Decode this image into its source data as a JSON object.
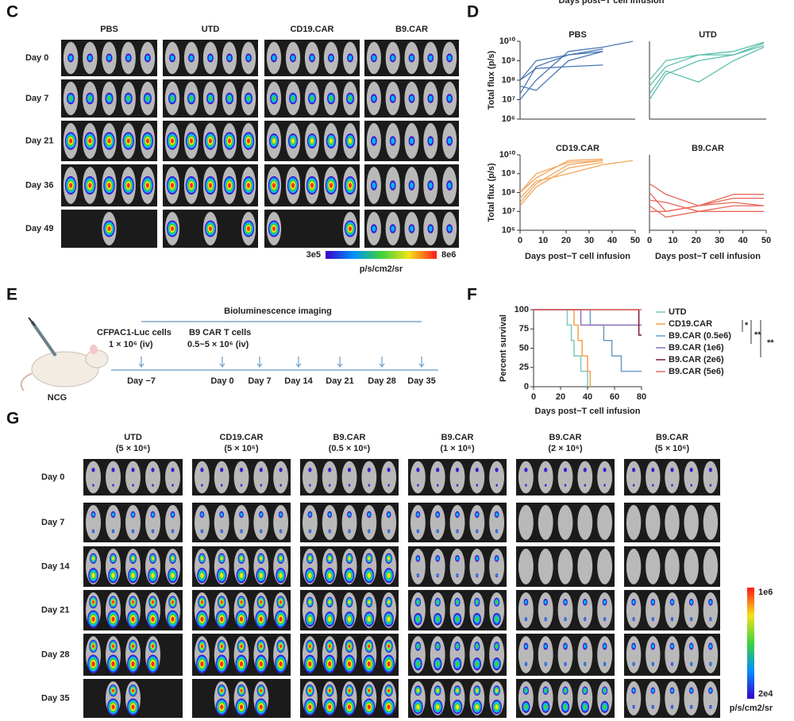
{
  "panel_c": {
    "label": "C",
    "columns": [
      "PBS",
      "UTD",
      "CD19.CAR",
      "B9.CAR"
    ],
    "rows": [
      "Day 0",
      "Day 7",
      "Day 21",
      "Day 36",
      "Day 49"
    ],
    "colorbar": {
      "min_label": "3e5",
      "max_label": "8e6",
      "unit": "p/s/cm2/sr"
    }
  },
  "panel_d": {
    "label": "D",
    "top_caption": "Days post−T cell infusion"
  },
  "panel_e": {
    "label": "E",
    "imaging": "Bioluminescence imaging",
    "cells": "CFPAC1-Luc cells",
    "cells_dose": "1 × 10⁶ (iv)",
    "car": "B9 CAR T cells",
    "car_dose": "0.5~5 × 10⁶ (iv)",
    "mouse": "NCG",
    "timepoints": [
      "Day −7",
      "Day 0",
      "Day 7",
      "Day 14",
      "Day 21",
      "Day 28",
      "Day 35"
    ]
  },
  "panel_f": {
    "label": "F"
  },
  "panel_g": {
    "label": "G",
    "columns": [
      {
        "name": "UTD",
        "dose": "(5 × 10⁶)"
      },
      {
        "name": "CD19.CAR",
        "dose": "(5 × 10⁶)"
      },
      {
        "name": "B9.CAR",
        "dose": "(0.5 × 10⁶)"
      },
      {
        "name": "B9.CAR",
        "dose": "(1 × 10⁶)"
      },
      {
        "name": "B9.CAR",
        "dose": "(2 × 10⁶)"
      },
      {
        "name": "B9.CAR",
        "dose": "(5 × 10⁶)"
      }
    ],
    "rows": [
      "Day 0",
      "Day 7",
      "Day 14",
      "Day 21",
      "Day 28",
      "Day 35"
    ],
    "colorbar": {
      "max_label": "1e6",
      "min_label": "2e4",
      "unit": "p/s/cm2/sr"
    }
  },
  "chart_data": [
    {
      "type": "line",
      "title": "PBS",
      "ylabel": "Total flux (p/s)",
      "log_y": true,
      "x": [
        0,
        7,
        21,
        36,
        49
      ],
      "xlim": [
        0,
        50
      ],
      "ylim": [
        1000000,
        10000000000
      ],
      "yticks": [
        {
          "value": 1000000,
          "label": "10⁶"
        },
        {
          "value": 10000000,
          "label": "10⁷"
        },
        {
          "value": 100000000,
          "label": "10⁸"
        },
        {
          "value": 1000000000,
          "label": "10⁹"
        },
        {
          "value": 10000000000,
          "label": "10¹⁰"
        }
      ],
      "series": [
        {
          "color": "#4a78b5",
          "values": [
            20000000,
            500000000,
            2000000000,
            3000000000,
            null
          ]
        },
        {
          "color": "#4a78b5",
          "values": [
            10000000,
            100000000,
            3000000000,
            5000000000,
            10000000000
          ]
        },
        {
          "color": "#4a78b5",
          "values": [
            100000000,
            400000000,
            500000000,
            600000000,
            null
          ]
        },
        {
          "color": "#4a78b5",
          "values": [
            100000000,
            1000000000,
            2000000000,
            4000000000,
            null
          ]
        },
        {
          "color": "#4a78b5",
          "values": [
            50000000,
            30000000,
            1000000000,
            3000000000,
            null
          ]
        }
      ]
    },
    {
      "type": "line",
      "title": "UTD",
      "log_y": true,
      "x": [
        0,
        7,
        21,
        36,
        49
      ],
      "xlim": [
        0,
        50
      ],
      "ylim": [
        1000000,
        10000000000
      ],
      "series": [
        {
          "color": "#5fbfae",
          "values": [
            10000000,
            200000000,
            1000000000,
            2000000000,
            8000000000
          ]
        },
        {
          "color": "#5fbfae",
          "values": [
            50000000,
            500000000,
            2000000000,
            2000000000,
            6000000000
          ]
        },
        {
          "color": "#5fbfae",
          "values": [
            100000000,
            1000000000,
            2000000000,
            3000000000,
            9000000000
          ]
        },
        {
          "color": "#5fbfae",
          "values": [
            20000000,
            300000000,
            80000000,
            1000000000,
            5000000000
          ]
        }
      ]
    },
    {
      "type": "line",
      "title": "CD19.CAR",
      "ylabel": "Total flux (p/s)",
      "xlabel": "Days post−T cell infusion",
      "log_y": true,
      "x": [
        0,
        7,
        21,
        36,
        49
      ],
      "xlim": [
        0,
        50
      ],
      "xticks": [
        0,
        10,
        20,
        30,
        40,
        50
      ],
      "ylim": [
        1000000,
        10000000000
      ],
      "yticks": [
        {
          "value": 1000000,
          "label": "10⁶"
        },
        {
          "value": 10000000,
          "label": "10⁷"
        },
        {
          "value": 100000000,
          "label": "10⁸"
        },
        {
          "value": 1000000000,
          "label": "10⁹"
        },
        {
          "value": 10000000000,
          "label": "10¹⁰"
        }
      ],
      "series": [
        {
          "color": "#f2a65a",
          "values": [
            100000000,
            600000000,
            5000000000,
            6000000000,
            null
          ]
        },
        {
          "color": "#f2a65a",
          "values": [
            20000000,
            200000000,
            2000000000,
            4000000000,
            null
          ]
        },
        {
          "color": "#f2a65a",
          "values": [
            50000000,
            400000000,
            1000000000,
            3000000000,
            5000000000
          ]
        },
        {
          "color": "#f2a65a",
          "values": [
            30000000,
            300000000,
            3000000000,
            5000000000,
            null
          ]
        },
        {
          "color": "#f2a65a",
          "values": [
            100000000,
            1000000000,
            4000000000,
            5000000000,
            null
          ]
        }
      ]
    },
    {
      "type": "line",
      "title": "B9.CAR",
      "xlabel": "Days post−T cell infusion",
      "log_y": true,
      "x": [
        0,
        7,
        21,
        36,
        49
      ],
      "xlim": [
        0,
        50
      ],
      "xticks": [
        0,
        10,
        20,
        30,
        40,
        50
      ],
      "ylim": [
        1000000,
        10000000000
      ],
      "series": [
        {
          "color": "#e8675a",
          "values": [
            300000000,
            80000000,
            20000000,
            80000000,
            80000000
          ]
        },
        {
          "color": "#e8675a",
          "values": [
            100000000,
            10000000,
            20000000,
            50000000,
            50000000
          ]
        },
        {
          "color": "#e8675a",
          "values": [
            40000000,
            30000000,
            10000000,
            20000000,
            20000000
          ]
        },
        {
          "color": "#e8675a",
          "values": [
            20000000,
            5000000,
            10000000,
            10000000,
            10000000
          ]
        },
        {
          "color": "#e8675a",
          "values": [
            10000000,
            10000000,
            20000000,
            30000000,
            20000000
          ]
        }
      ]
    },
    {
      "type": "step",
      "ylabel": "Percent survival",
      "xlabel": "Days post−T cell infusion",
      "xlim": [
        0,
        80
      ],
      "xticks": [
        0,
        20,
        40,
        60,
        80
      ],
      "ylim": [
        0,
        100
      ],
      "yticks": [
        0,
        25,
        50,
        75,
        100
      ],
      "annotations": [
        "*",
        "**",
        "**"
      ],
      "series": [
        {
          "name": "UTD",
          "color": "#7cc9c0",
          "x": [
            0,
            25,
            28,
            30,
            35,
            40
          ],
          "values": [
            100,
            80,
            60,
            40,
            20,
            0
          ]
        },
        {
          "name": "CD19.CAR",
          "color": "#f5a04a",
          "x": [
            0,
            30,
            33,
            36,
            40,
            42
          ],
          "values": [
            100,
            80,
            60,
            40,
            20,
            0
          ]
        },
        {
          "name": "B9.CAR (0.5e6)",
          "color": "#6c9cc8",
          "x": [
            0,
            42,
            52,
            58,
            65,
            80
          ],
          "values": [
            100,
            80,
            60,
            40,
            20,
            20
          ]
        },
        {
          "name": "B9.CAR (1e6)",
          "color": "#8f6fc0",
          "x": [
            0,
            35,
            80
          ],
          "values": [
            100,
            80,
            80
          ]
        },
        {
          "name": "B9.CAR (2e6)",
          "color": "#7a1b2e",
          "x": [
            0,
            78,
            80
          ],
          "values": [
            100,
            67,
            67
          ]
        },
        {
          "name": "B9.CAR (5e6)",
          "color": "#e56a6a",
          "x": [
            0,
            80
          ],
          "values": [
            100,
            100
          ]
        }
      ]
    }
  ]
}
